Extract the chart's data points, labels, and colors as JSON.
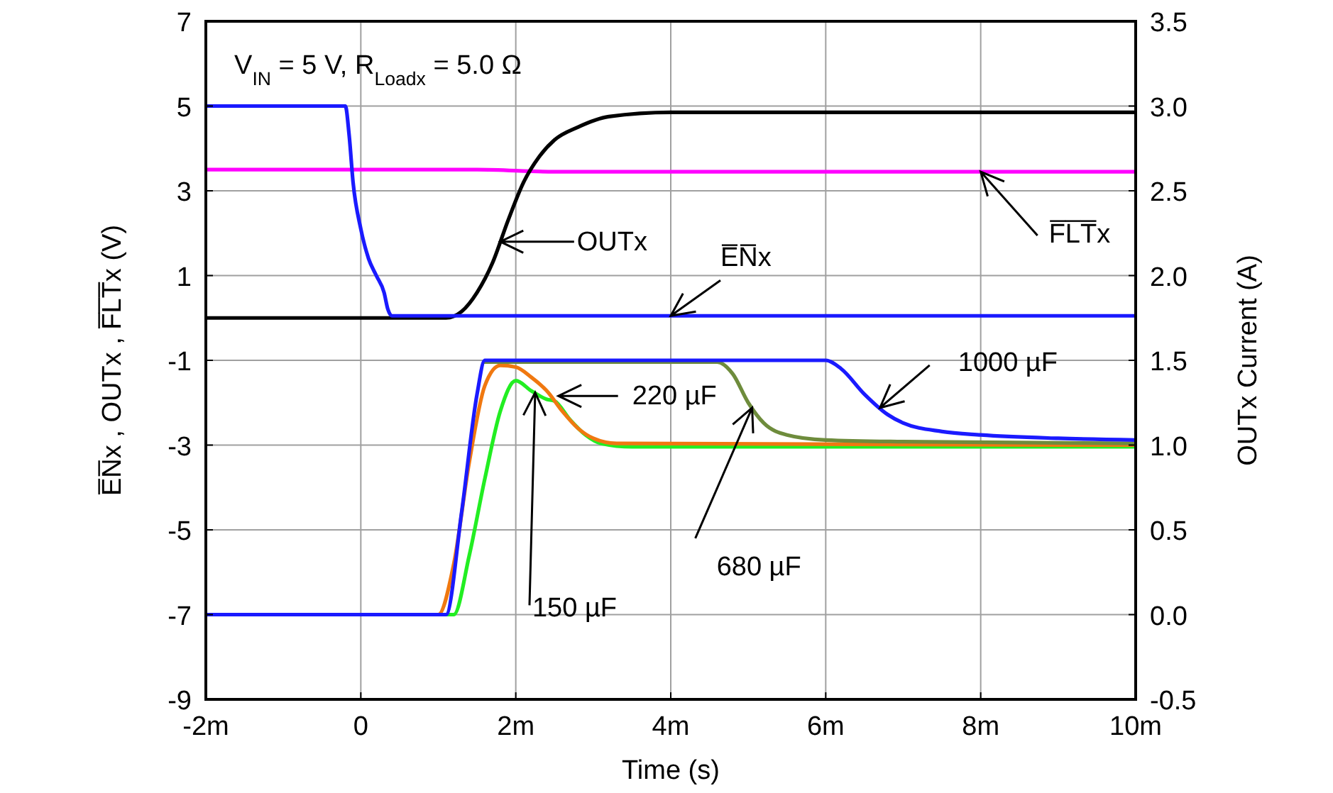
{
  "chart_data": {
    "type": "line",
    "title": "V$_{IN}$ = 5 V, R$_{Loadx}$ = 5.0 Ω",
    "xlabel": "Time (s)",
    "ylabel": "E̅N̅x , OUTx , F̅L̅T̅x (V)",
    "y2label": "OUTx Current (A)",
    "xlim": [
      -2,
      10
    ],
    "xticks": [
      {
        "value": -2,
        "label": "-2m"
      },
      0,
      {
        "value": 2,
        "label": "2m"
      },
      {
        "value": 4,
        "label": "4m"
      },
      {
        "value": 6,
        "label": "6m"
      },
      {
        "value": 8,
        "label": "8m"
      },
      {
        "value": 10,
        "label": "10m"
      }
    ],
    "ylim": [
      -9,
      7
    ],
    "yticks": [
      -9,
      -7,
      -5,
      -3,
      -1,
      1,
      3,
      5,
      7
    ],
    "y2lim": [
      -0.5,
      3.5
    ],
    "y2ticks": [
      -0.5,
      {
        "value": 0,
        "label": "0.0"
      },
      0.5,
      {
        "value": 1,
        "label": "1.0"
      },
      1.5,
      {
        "value": 2,
        "label": "2.0"
      },
      2.5,
      {
        "value": 3,
        "label": "3.0"
      },
      3.5
    ],
    "grid": true,
    "line_style": "solid",
    "marker": "none",
    "series": [
      {
        "color": "#22ee22",
        "axis": "y2",
        "x": [
          -2,
          1.2,
          1.4,
          1.6,
          1.8,
          2,
          2.2,
          2.4,
          2.5,
          2.7,
          2.9,
          3.1,
          3.5,
          10
        ],
        "values": [
          0,
          0,
          0.35,
          0.8,
          1.2,
          1.38,
          1.32,
          1.27,
          1.26,
          1.15,
          1.06,
          1.01,
          0.99,
          0.99
        ]
      },
      {
        "color": "#f07810",
        "axis": "y2",
        "x": [
          -2,
          1,
          1.2,
          1.4,
          1.6,
          1.8,
          2,
          2.2,
          2.4,
          2.6,
          2.8,
          3,
          3.3,
          10
        ],
        "values": [
          0,
          0,
          0.3,
          0.9,
          1.35,
          1.47,
          1.46,
          1.4,
          1.32,
          1.2,
          1.1,
          1.04,
          1.01,
          1.0
        ]
      },
      {
        "color": "#6e8c3c",
        "axis": "y2",
        "x": [
          1.6,
          4.6,
          4.8,
          5,
          5.2,
          5.5,
          6,
          7,
          10
        ],
        "values": [
          1.49,
          1.49,
          1.42,
          1.25,
          1.13,
          1.06,
          1.03,
          1.02,
          1.01
        ]
      },
      {
        "color": "#1a1aff",
        "axis": "y2",
        "x": [
          -2,
          1.1,
          1.3,
          1.5,
          1.6,
          6,
          6.2,
          6.5,
          6.8,
          7,
          7.5,
          8,
          9,
          10
        ],
        "values": [
          0,
          0,
          0.6,
          1.3,
          1.5,
          1.5,
          1.45,
          1.3,
          1.18,
          1.13,
          1.08,
          1.06,
          1.04,
          1.03
        ]
      },
      {
        "color": "#ff00ff",
        "x": [
          -2,
          1.5,
          2.5,
          10
        ],
        "values": [
          3.5,
          3.5,
          3.45,
          3.45
        ]
      },
      {
        "color": "#000000",
        "x": [
          -2,
          1.1,
          1.3,
          1.5,
          1.7,
          1.9,
          2.1,
          2.3,
          2.5,
          2.8,
          3.2,
          4,
          10
        ],
        "values": [
          0,
          0,
          0.15,
          0.6,
          1.3,
          2.3,
          3.2,
          3.8,
          4.2,
          4.5,
          4.75,
          4.85,
          4.85
        ]
      },
      {
        "color": "#1a1aff",
        "x": [
          -2,
          -0.2,
          -0.15,
          -0.1,
          0,
          0.1,
          0.2,
          0.3,
          0.35,
          0.4,
          10
        ],
        "values": [
          5,
          5,
          4.3,
          3.2,
          2.1,
          1.4,
          1.0,
          0.6,
          0.2,
          0.05,
          0.05
        ]
      }
    ],
    "annotations": [
      {
        "text": "OUTx",
        "x": 1.8,
        "y": 1.8
      },
      {
        "text": "E̅N̅x",
        "x": 4,
        "y": 0.05
      },
      {
        "text": "F̅L̅T̅x",
        "x": 8,
        "y": 3.45
      },
      {
        "text": "220 µF",
        "x": 2.55,
        "y": -1.84
      },
      {
        "text": "1000 µF",
        "x": 6.7,
        "y": -2.12
      },
      {
        "text": "680 µF",
        "x": 5.05,
        "y": -2.12
      },
      {
        "text": "150 µF",
        "x": 2.25,
        "y": -1.76
      }
    ]
  }
}
